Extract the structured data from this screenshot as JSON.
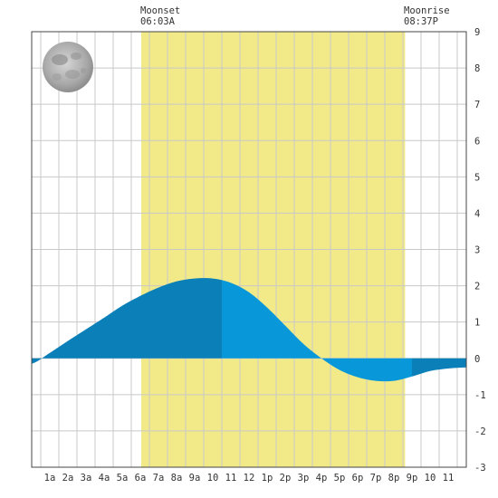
{
  "chart_data": {
    "type": "area",
    "title": "",
    "xlabel": "",
    "ylabel": "",
    "xlim": [
      0,
      24
    ],
    "ylim": [
      -3,
      9
    ],
    "grid": true,
    "x_tick_labels": [
      "1a",
      "2a",
      "3a",
      "4a",
      "5a",
      "6a",
      "7a",
      "8a",
      "9a",
      "10",
      "11",
      "12",
      "1p",
      "2p",
      "3p",
      "4p",
      "5p",
      "6p",
      "7p",
      "8p",
      "9p",
      "10",
      "11"
    ],
    "y_tick_labels": [
      "-3",
      "-2",
      "-1",
      "0",
      "1",
      "2",
      "3",
      "4",
      "5",
      "6",
      "7",
      "8",
      "9"
    ],
    "series": [
      {
        "values": [
          [
            0,
            -0.15
          ],
          [
            1,
            0.15
          ],
          [
            2,
            0.48
          ],
          [
            3,
            0.8
          ],
          [
            4,
            1.12
          ],
          [
            5,
            1.45
          ],
          [
            6,
            1.72
          ],
          [
            7,
            1.95
          ],
          [
            8,
            2.12
          ],
          [
            9,
            2.2
          ],
          [
            10,
            2.2
          ],
          [
            11,
            2.08
          ],
          [
            12,
            1.82
          ],
          [
            13,
            1.4
          ],
          [
            14,
            0.9
          ],
          [
            15,
            0.4
          ],
          [
            16,
            0.0
          ],
          [
            17,
            -0.32
          ],
          [
            18,
            -0.52
          ],
          [
            19,
            -0.62
          ],
          [
            20,
            -0.62
          ],
          [
            21,
            -0.5
          ],
          [
            22,
            -0.35
          ],
          [
            23,
            -0.28
          ],
          [
            24,
            -0.25
          ]
        ]
      }
    ],
    "moon_up_interval": [
      6.05,
      20.62
    ],
    "moonset": {
      "label": "Moonset",
      "time": "06:03A"
    },
    "moonrise": {
      "label": "Moonrise",
      "time": "08:37P"
    },
    "shading_breaks": [
      10.5,
      21.0
    ],
    "colors": {
      "moon_band": "#f2ea88",
      "tide_dark": "#0a7fb8",
      "tide_light": "#0898d9",
      "grid": "#c8c8c8",
      "frame": "#444444",
      "text": "#333333"
    },
    "moon_phase_icon": "full-moon-icon"
  }
}
